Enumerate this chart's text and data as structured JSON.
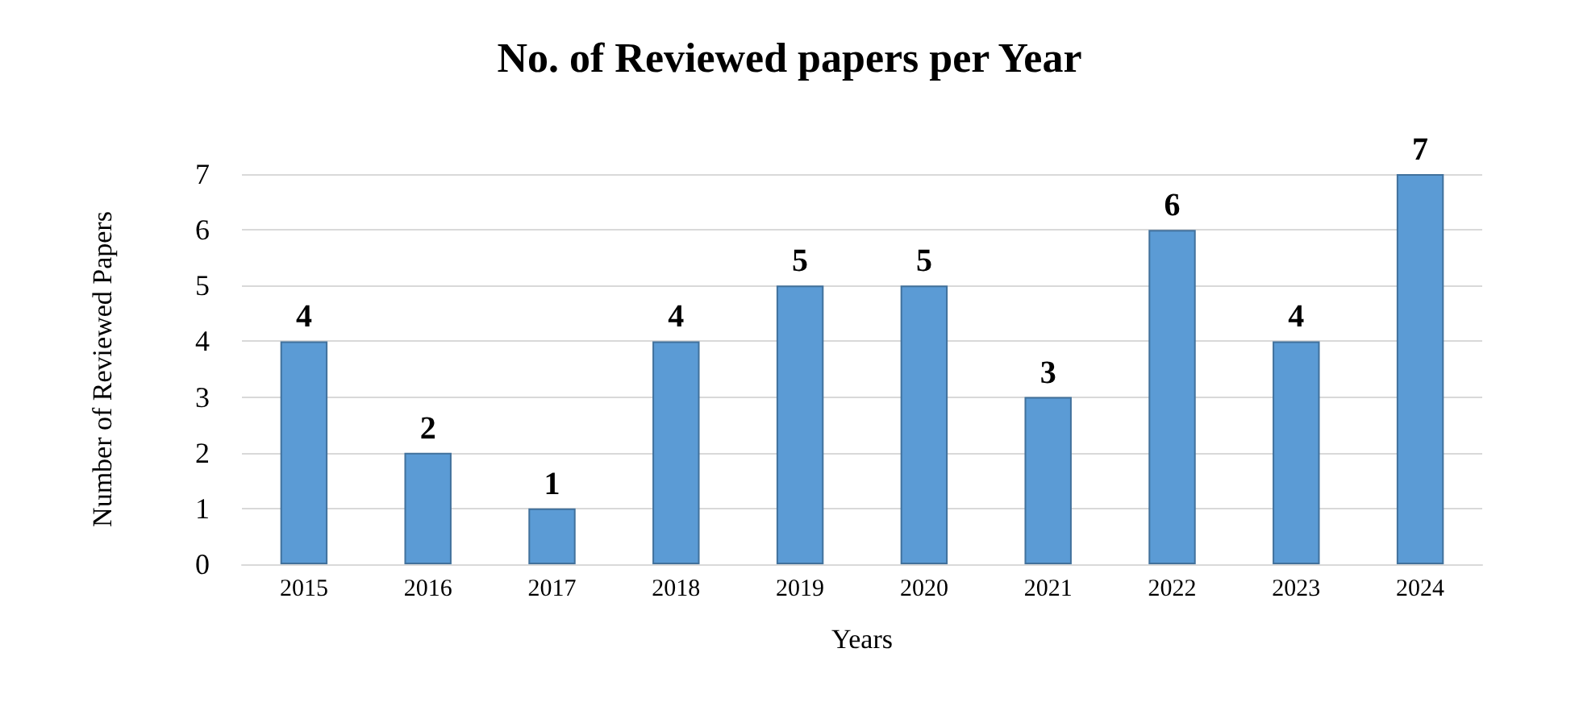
{
  "chart_data": {
    "type": "bar",
    "title": "No. of Reviewed papers per Year",
    "xlabel": "Years",
    "ylabel": "Number of Reviewed Papers",
    "categories": [
      "2015",
      "2016",
      "2017",
      "2018",
      "2019",
      "2020",
      "2021",
      "2022",
      "2023",
      "2024"
    ],
    "values": [
      4,
      2,
      1,
      4,
      5,
      5,
      3,
      6,
      4,
      7
    ],
    "color": "#5b9bd5",
    "ylim": [
      0,
      7
    ],
    "yticks": [
      0,
      1,
      2,
      3,
      4,
      5,
      6,
      7
    ],
    "grid": true,
    "data_labels": true
  }
}
